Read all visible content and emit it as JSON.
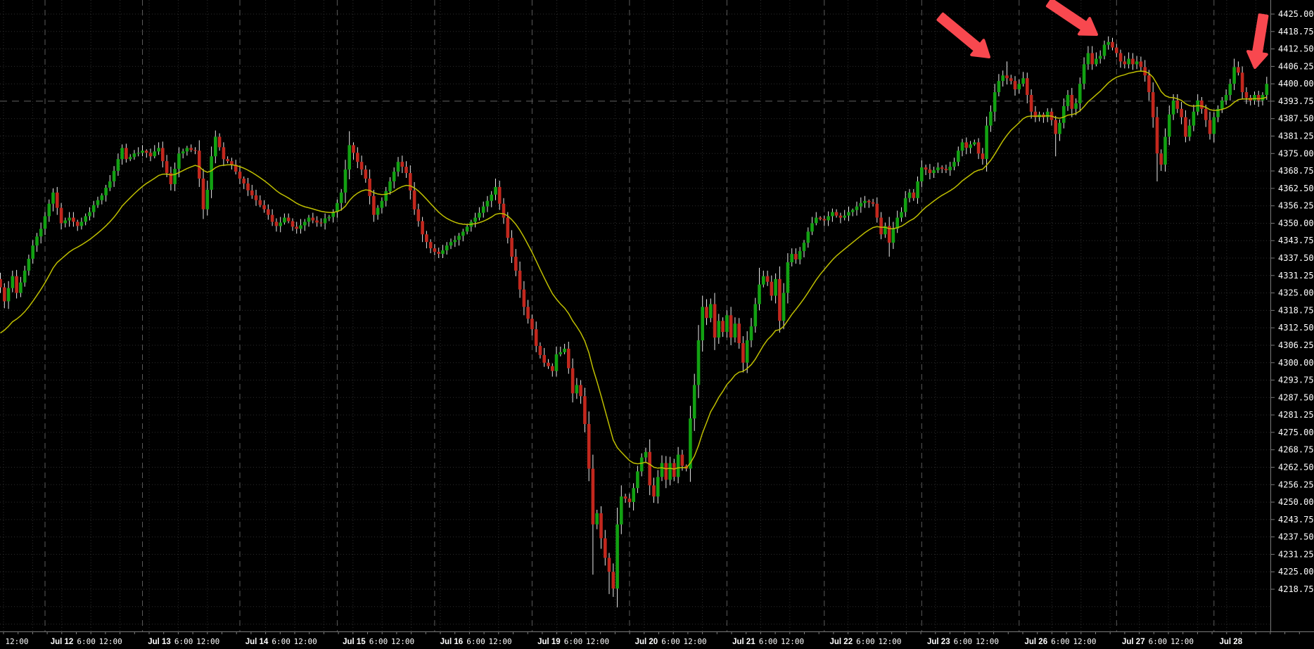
{
  "chart_data": {
    "type": "candlestick",
    "interval_hint": "H1",
    "background": "#000000",
    "y_axis": {
      "max": 4425.0,
      "min_labeled": 4218.75,
      "tick_step": 6.25,
      "emphasized_level": 4393.75,
      "labels": [
        "4425.00",
        "4418.75",
        "4412.50",
        "4406.25",
        "4400.00",
        "4393.75",
        "4387.50",
        "4381.25",
        "4375.00",
        "4368.75",
        "4362.50",
        "4356.25",
        "4350.00",
        "4343.75",
        "4337.50",
        "4331.25",
        "4325.00",
        "4318.75",
        "4312.50",
        "4306.25",
        "4300.00",
        "4293.75",
        "4287.50",
        "4281.25",
        "4275.00",
        "4268.75",
        "4262.50",
        "4256.25",
        "4250.00",
        "4243.75",
        "4237.50",
        "4231.25",
        "4225.00",
        "4218.75"
      ]
    },
    "x_axis": {
      "lead_label": "12:00",
      "day_labels": [
        "Jul 12",
        "Jul 13",
        "Jul 14",
        "Jul 15",
        "Jul 16",
        "Jul 19",
        "Jul 20",
        "Jul 21",
        "Jul 22",
        "Jul 23",
        "Jul 26",
        "Jul 27",
        "Jul 28"
      ],
      "time_labels": [
        "6:00",
        "12:00"
      ]
    },
    "colors": {
      "up_candle": "#12A112",
      "down_candle": "#C2271D",
      "wick": "#E9E9E9",
      "ma_line": "#BFBF00",
      "grid_minor": "#2E2E2E",
      "grid_day": "#5A5A5A",
      "level_line": "#626262",
      "axis_border": "#7A7A7A",
      "axis_text": "#FFFFFF",
      "arrow": "#F8484F"
    },
    "moving_average": {
      "type": "EMA",
      "period": 21,
      "seed": 4309
    },
    "series": {
      "first_candle": "Jul 11 13:00",
      "candle_count": 313,
      "close_waypoints": [
        [
          0,
          4327
        ],
        [
          1,
          4322
        ],
        [
          3,
          4331
        ],
        [
          4,
          4325
        ],
        [
          6,
          4333
        ],
        [
          8,
          4342
        ],
        [
          10,
          4348
        ],
        [
          12,
          4357
        ],
        [
          13,
          4361
        ],
        [
          15,
          4350
        ],
        [
          17,
          4352
        ],
        [
          19,
          4349
        ],
        [
          22,
          4354
        ],
        [
          25,
          4360
        ],
        [
          27,
          4365
        ],
        [
          29,
          4373
        ],
        [
          30,
          4377
        ],
        [
          31,
          4373
        ],
        [
          33,
          4375
        ],
        [
          35,
          4376
        ],
        [
          37,
          4374
        ],
        [
          39,
          4377
        ],
        [
          41,
          4368
        ],
        [
          42,
          4364
        ],
        [
          44,
          4375
        ],
        [
          46,
          4377
        ],
        [
          48,
          4376
        ],
        [
          49,
          4366
        ],
        [
          50,
          4355
        ],
        [
          51,
          4362
        ],
        [
          52,
          4374
        ],
        [
          53,
          4381
        ],
        [
          55,
          4373
        ],
        [
          57,
          4371
        ],
        [
          59,
          4366
        ],
        [
          62,
          4360
        ],
        [
          65,
          4355
        ],
        [
          68,
          4349
        ],
        [
          70,
          4352
        ],
        [
          73,
          4348
        ],
        [
          76,
          4352
        ],
        [
          79,
          4350
        ],
        [
          82,
          4354
        ],
        [
          84,
          4361
        ],
        [
          86,
          4378
        ],
        [
          88,
          4372
        ],
        [
          90,
          4366
        ],
        [
          92,
          4353
        ],
        [
          94,
          4358
        ],
        [
          96,
          4365
        ],
        [
          98,
          4372
        ],
        [
          100,
          4368
        ],
        [
          102,
          4355
        ],
        [
          104,
          4346
        ],
        [
          106,
          4341
        ],
        [
          108,
          4339
        ],
        [
          110,
          4342
        ],
        [
          112,
          4344
        ],
        [
          114,
          4347
        ],
        [
          117,
          4352
        ],
        [
          120,
          4358
        ],
        [
          122,
          4363
        ],
        [
          123,
          4357
        ],
        [
          124,
          4352
        ],
        [
          126,
          4338
        ],
        [
          127,
          4333
        ],
        [
          129,
          4320
        ],
        [
          131,
          4312
        ],
        [
          132,
          4306
        ],
        [
          134,
          4300
        ],
        [
          136,
          4297
        ],
        [
          137,
          4303
        ],
        [
          139,
          4305
        ],
        [
          140,
          4298
        ],
        [
          141,
          4289
        ],
        [
          142,
          4292
        ],
        [
          143,
          4288
        ],
        [
          144,
          4278
        ],
        [
          145,
          4262
        ],
        [
          146,
          4242
        ],
        [
          147,
          4246
        ],
        [
          148,
          4237
        ],
        [
          149,
          4230
        ],
        [
          150,
          4225
        ],
        [
          151,
          4219
        ],
        [
          152,
          4242
        ],
        [
          153,
          4252
        ],
        [
          155,
          4250
        ],
        [
          156,
          4255
        ],
        [
          157,
          4261
        ],
        [
          158,
          4266
        ],
        [
          159,
          4268
        ],
        [
          160,
          4256
        ],
        [
          161,
          4252
        ],
        [
          162,
          4259
        ],
        [
          163,
          4264
        ],
        [
          164,
          4258
        ],
        [
          165,
          4264
        ],
        [
          166,
          4259
        ],
        [
          167,
          4267
        ],
        [
          168,
          4263
        ],
        [
          169,
          4262
        ],
        [
          170,
          4280
        ],
        [
          171,
          4292
        ],
        [
          172,
          4308
        ],
        [
          173,
          4320
        ],
        [
          174,
          4316
        ],
        [
          175,
          4321
        ],
        [
          176,
          4309
        ],
        [
          177,
          4315
        ],
        [
          178,
          4311
        ],
        [
          179,
          4317
        ],
        [
          180,
          4309
        ],
        [
          181,
          4314
        ],
        [
          182,
          4307
        ],
        [
          183,
          4300
        ],
        [
          184,
          4308
        ],
        [
          185,
          4313
        ],
        [
          186,
          4321
        ],
        [
          187,
          4328
        ],
        [
          188,
          4331
        ],
        [
          189,
          4329
        ],
        [
          190,
          4324
        ],
        [
          191,
          4330
        ],
        [
          192,
          4315
        ],
        [
          193,
          4325
        ],
        [
          194,
          4336
        ],
        [
          195,
          4339
        ],
        [
          196,
          4337
        ],
        [
          197,
          4340
        ],
        [
          198,
          4343
        ],
        [
          199,
          4347
        ],
        [
          200,
          4350
        ],
        [
          201,
          4352
        ],
        [
          203,
          4351
        ],
        [
          205,
          4354
        ],
        [
          207,
          4352
        ],
        [
          209,
          4354
        ],
        [
          211,
          4356
        ],
        [
          213,
          4358
        ],
        [
          215,
          4357
        ],
        [
          216,
          4352
        ],
        [
          217,
          4346
        ],
        [
          218,
          4349
        ],
        [
          219,
          4343
        ],
        [
          220,
          4348
        ],
        [
          221,
          4352
        ],
        [
          222,
          4354
        ],
        [
          223,
          4359
        ],
        [
          224,
          4361
        ],
        [
          225,
          4359
        ],
        [
          226,
          4365
        ],
        [
          227,
          4370
        ],
        [
          229,
          4368
        ],
        [
          231,
          4370
        ],
        [
          233,
          4369
        ],
        [
          235,
          4372
        ],
        [
          236,
          4376
        ],
        [
          237,
          4379
        ],
        [
          238,
          4377
        ],
        [
          240,
          4379
        ],
        [
          241,
          4375
        ],
        [
          242,
          4373
        ],
        [
          243,
          4385
        ],
        [
          244,
          4390
        ],
        [
          245,
          4397
        ],
        [
          246,
          4401
        ],
        [
          247,
          4403
        ],
        [
          248,
          4402
        ],
        [
          249,
          4401
        ],
        [
          250,
          4398
        ],
        [
          251,
          4400
        ],
        [
          252,
          4402
        ],
        [
          253,
          4396
        ],
        [
          254,
          4390
        ],
        [
          255,
          4388
        ],
        [
          256,
          4389
        ],
        [
          257,
          4388
        ],
        [
          258,
          4390
        ],
        [
          259,
          4387
        ],
        [
          260,
          4382
        ],
        [
          261,
          4386
        ],
        [
          262,
          4392
        ],
        [
          263,
          4396
        ],
        [
          264,
          4391
        ],
        [
          265,
          4393
        ],
        [
          266,
          4400
        ],
        [
          267,
          4407
        ],
        [
          268,
          4411
        ],
        [
          269,
          4407
        ],
        [
          270,
          4409
        ],
        [
          271,
          4410
        ],
        [
          272,
          4414
        ],
        [
          273,
          4415
        ],
        [
          274,
          4413
        ],
        [
          275,
          4411
        ],
        [
          276,
          4408
        ],
        [
          277,
          4407
        ],
        [
          278,
          4409
        ],
        [
          279,
          4407
        ],
        [
          280,
          4408
        ],
        [
          281,
          4406
        ],
        [
          282,
          4403
        ],
        [
          283,
          4397
        ],
        [
          284,
          4388
        ],
        [
          285,
          4375
        ],
        [
          286,
          4371
        ],
        [
          287,
          4381
        ],
        [
          288,
          4389
        ],
        [
          289,
          4394
        ],
        [
          290,
          4391
        ],
        [
          291,
          4388
        ],
        [
          292,
          4381
        ],
        [
          293,
          4385
        ],
        [
          294,
          4390
        ],
        [
          295,
          4394
        ],
        [
          296,
          4391
        ],
        [
          297,
          4387
        ],
        [
          298,
          4382
        ],
        [
          299,
          4388
        ],
        [
          300,
          4391
        ],
        [
          301,
          4394
        ],
        [
          302,
          4396
        ],
        [
          303,
          4400
        ],
        [
          304,
          4406
        ],
        [
          305,
          4404
        ],
        [
          306,
          4397
        ],
        [
          307,
          4395
        ],
        [
          308,
          4394
        ],
        [
          309,
          4396
        ],
        [
          310,
          4394
        ],
        [
          311,
          4396
        ],
        [
          312,
          4400
        ]
      ],
      "wick_spikes": [
        {
          "i": 53,
          "high": 4383
        },
        {
          "i": 86,
          "high": 4383
        },
        {
          "i": 122,
          "high": 4366
        },
        {
          "i": 146,
          "low": 4224
        },
        {
          "i": 150,
          "low": 4217
        },
        {
          "i": 151,
          "low": 4216
        },
        {
          "i": 187,
          "high": 4334
        },
        {
          "i": 219,
          "low": 4338
        },
        {
          "i": 248,
          "high": 4408
        },
        {
          "i": 260,
          "low": 4374
        },
        {
          "i": 273,
          "high": 4417
        },
        {
          "i": 285,
          "low": 4365
        },
        {
          "i": 304,
          "high": 4409
        }
      ]
    },
    "annotations": {
      "arrows": [
        {
          "tail": [
            1337,
            24
          ],
          "tip": [
            1406,
            81
          ]
        },
        {
          "tail": [
            1492,
            4
          ],
          "tip": [
            1559,
            49
          ]
        },
        {
          "tail": [
            1796,
            22
          ],
          "tip": [
            1784,
            96
          ]
        }
      ]
    }
  }
}
